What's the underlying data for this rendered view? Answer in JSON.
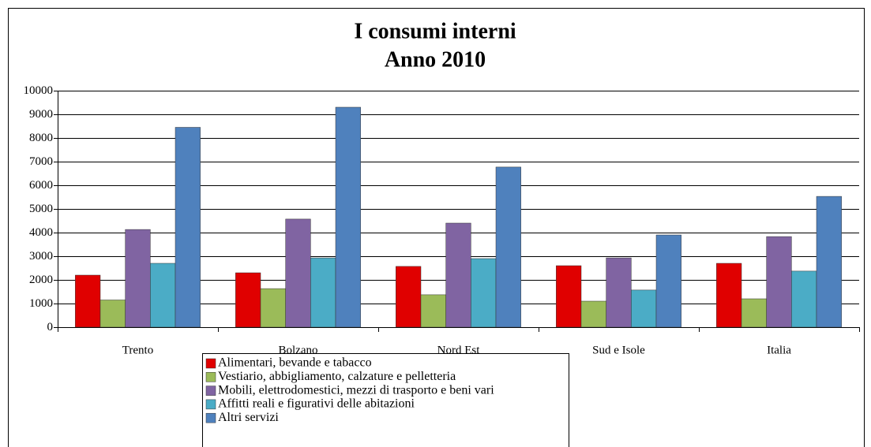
{
  "chart_data": {
    "type": "bar",
    "title": "I consumi interni",
    "subtitle": "Anno 2010",
    "categories": [
      "Trento",
      "Bolzano",
      "Nord Est",
      "Sud e Isole",
      "Italia"
    ],
    "series": [
      {
        "name": "Alimentari, bevande e tabacco",
        "color": "#e00000",
        "values": [
          2200,
          2300,
          2570,
          2600,
          2700
        ]
      },
      {
        "name": "Vestiario, abbigliamento, calzature e pelletteria",
        "color": "#9bbb59",
        "values": [
          1150,
          1630,
          1370,
          1100,
          1200
        ]
      },
      {
        "name": "Mobili, elettrodomestici, mezzi di trasporto e beni vari",
        "color": "#8064a2",
        "values": [
          4130,
          4570,
          4400,
          2930,
          3830
        ]
      },
      {
        "name": "Affitti reali e figurativi delle abitazioni",
        "color": "#4bacc6",
        "values": [
          2700,
          2930,
          2900,
          1570,
          2370
        ]
      },
      {
        "name": "Altri servizi",
        "color": "#4f81bd",
        "values": [
          8450,
          9300,
          6770,
          3900,
          5530
        ]
      }
    ],
    "ylim": [
      0,
      10000
    ],
    "yticks": [
      0,
      1000,
      2000,
      3000,
      4000,
      5000,
      6000,
      7000,
      8000,
      9000,
      10000
    ],
    "grid": true
  }
}
